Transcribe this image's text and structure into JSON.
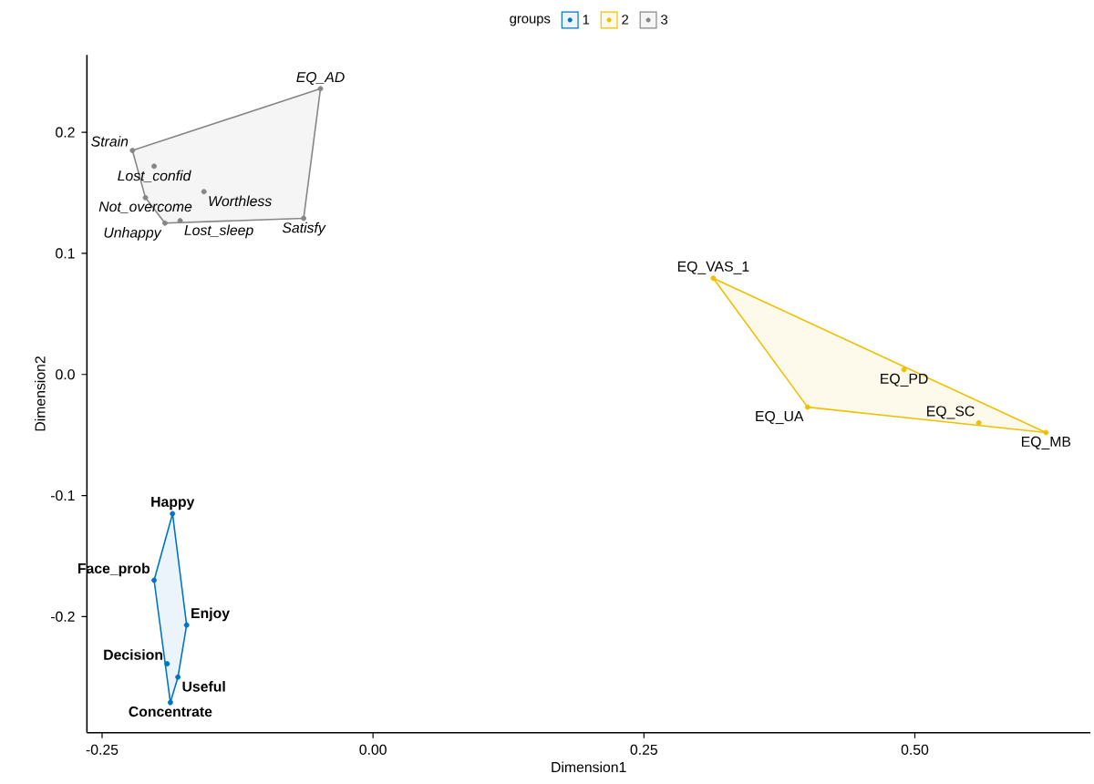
{
  "chart_data": {
    "type": "scatter",
    "xlabel": "Dimension1",
    "ylabel": "Dimension2",
    "legend_title": "groups",
    "legend": "top",
    "marker": "circle",
    "xlim": [
      -0.264,
      0.662
    ],
    "ylim": [
      -0.296,
      0.264
    ],
    "xticks": [
      -0.25,
      {
        "value": 0,
        "label": "0.00"
      },
      0.25,
      {
        "value": 0.5,
        "label": "0.50"
      }
    ],
    "yticks": [
      -0.2,
      -0.1,
      {
        "value": 0,
        "label": "0.0"
      },
      0.1,
      0.2
    ],
    "series": [
      {
        "name": "1",
        "color": "#0073C2",
        "x": [
          -0.185,
          -0.202,
          -0.172,
          -0.19,
          -0.18,
          -0.187
        ],
        "values": [
          -0.115,
          -0.17,
          -0.207,
          -0.239,
          -0.25,
          -0.271
        ]
      },
      {
        "name": "2",
        "color": "#EFC000",
        "x": [
          0.314,
          0.49,
          0.401,
          0.559,
          0.621
        ],
        "values": [
          0.0795,
          0.004,
          -0.027,
          -0.04,
          -0.048
        ]
      },
      {
        "name": "3",
        "color": "#868686",
        "x": [
          -0.0485,
          -0.222,
          -0.202,
          -0.156,
          -0.21,
          -0.192,
          -0.178,
          -0.064
        ],
        "values": [
          0.236,
          0.185,
          0.172,
          0.151,
          0.146,
          0.125,
          0.127,
          0.129
        ]
      }
    ],
    "annotations": [
      {
        "text": "Happy",
        "x": -0.185,
        "y": -0.115
      },
      {
        "text": "Face_prob",
        "x": -0.202,
        "y": -0.17
      },
      {
        "text": "Enjoy",
        "x": -0.172,
        "y": -0.207
      },
      {
        "text": "Decision",
        "x": -0.19,
        "y": -0.239
      },
      {
        "text": "Useful",
        "x": -0.18,
        "y": -0.25
      },
      {
        "text": "Concentrate",
        "x": -0.187,
        "y": -0.271
      },
      {
        "text": "EQ_VAS_1",
        "x": 0.314,
        "y": 0.0795
      },
      {
        "text": "EQ_PD",
        "x": 0.49,
        "y": 0.004
      },
      {
        "text": "EQ_UA",
        "x": 0.401,
        "y": -0.027
      },
      {
        "text": "EQ_SC",
        "x": 0.559,
        "y": -0.04
      },
      {
        "text": "EQ_MB",
        "x": 0.621,
        "y": -0.048
      },
      {
        "text": "EQ_AD",
        "x": -0.0485,
        "y": 0.236
      },
      {
        "text": "Strain",
        "x": -0.222,
        "y": 0.185
      },
      {
        "text": "Lost_confid",
        "x": -0.202,
        "y": 0.172
      },
      {
        "text": "Worthless",
        "x": -0.156,
        "y": 0.151
      },
      {
        "text": "Not_overcome",
        "x": -0.21,
        "y": 0.146
      },
      {
        "text": "Unhappy",
        "x": -0.192,
        "y": 0.125
      },
      {
        "text": "Lost_sleep",
        "x": -0.178,
        "y": 0.127
      },
      {
        "text": "Satisfy",
        "x": -0.064,
        "y": 0.129
      }
    ]
  }
}
